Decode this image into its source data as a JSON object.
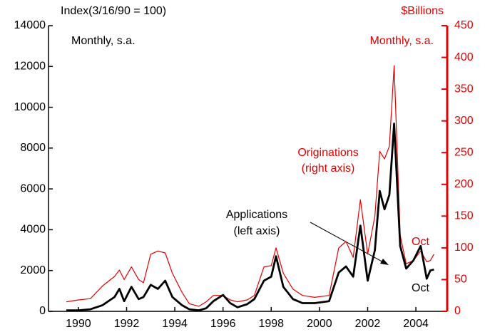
{
  "chart_data": {
    "type": "line",
    "ylabel": "Index(3/16/90 = 100)",
    "y2label": "$Billions",
    "annotations": [
      "Monthly, s.a.",
      "Monthly, s.a.",
      "Originations",
      "(right axis)",
      "Applications",
      "(left axis)",
      "Oct",
      "Oct"
    ],
    "x": [
      1989.5,
      1990.0,
      1990.5,
      1991.0,
      1991.5,
      1991.7,
      1991.9,
      1992.2,
      1992.5,
      1992.7,
      1993.0,
      1993.3,
      1993.6,
      1993.9,
      1994.3,
      1994.6,
      1995.0,
      1995.3,
      1995.6,
      1996.0,
      1996.3,
      1996.6,
      1997.0,
      1997.3,
      1997.7,
      1998.0,
      1998.2,
      1998.5,
      1998.9,
      1999.3,
      1999.8,
      2000.4,
      2000.8,
      2001.1,
      2001.4,
      2001.7,
      2002.0,
      2002.3,
      2002.5,
      2002.7,
      2002.9,
      2003.1,
      2003.35,
      2003.6,
      2003.9,
      2004.2,
      2004.45,
      2004.6,
      2004.75
    ],
    "series": [
      {
        "color": "#000000",
        "axis": "y",
        "values": [
          50,
          50,
          100,
          300,
          700,
          1100,
          500,
          1200,
          600,
          700,
          1300,
          1100,
          1500,
          700,
          300,
          100,
          50,
          150,
          500,
          800,
          400,
          200,
          350,
          600,
          1500,
          1700,
          2700,
          1200,
          600,
          400,
          400,
          500,
          1900,
          2200,
          1700,
          4200,
          1500,
          3000,
          5900,
          5000,
          5700,
          9200,
          3200,
          2100,
          2500,
          3200,
          1600,
          2000,
          2050
        ]
      },
      {
        "color": "#e00000",
        "axis": "y2",
        "values": [
          15,
          18,
          20,
          40,
          55,
          65,
          50,
          70,
          50,
          45,
          90,
          95,
          92,
          60,
          30,
          12,
          8,
          15,
          25,
          25,
          18,
          15,
          18,
          25,
          70,
          72,
          100,
          60,
          35,
          25,
          22,
          25,
          100,
          110,
          85,
          176,
          90,
          150,
          252,
          240,
          260,
          387,
          120,
          75,
          80,
          95,
          78,
          80,
          90
        ]
      }
    ],
    "xlim": [
      1988.76,
      2005.3
    ],
    "xticks": [
      1990,
      1992,
      1994,
      1996,
      1998,
      2000,
      2002,
      2004
    ],
    "ylim": [
      0,
      14000
    ],
    "yticks": [
      0,
      2000,
      4000,
      6000,
      8000,
      10000,
      12000,
      14000
    ],
    "y2lim": [
      0,
      450
    ],
    "y2ticks": [
      0,
      50,
      100,
      150,
      200,
      250,
      300,
      350,
      400,
      450
    ]
  }
}
